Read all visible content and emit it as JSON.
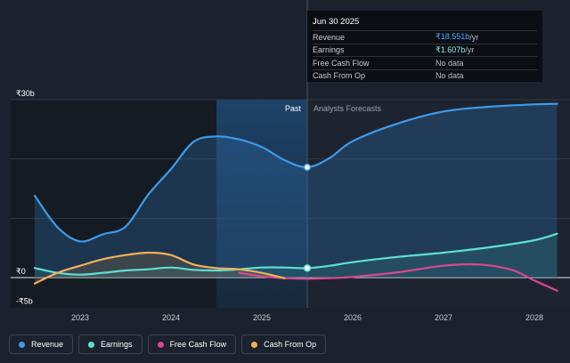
{
  "tooltip": {
    "date": "Jun 30 2025",
    "rows": [
      {
        "label": "Revenue",
        "value": "₹18.551b",
        "unit": " /yr"
      },
      {
        "label": "Earnings",
        "value": "₹1.607b",
        "unit": " /yr"
      },
      {
        "label": "Free Cash Flow",
        "value": "No data",
        "unit": ""
      },
      {
        "label": "Cash From Op",
        "value": "No data",
        "unit": ""
      }
    ]
  },
  "labels": {
    "past": "Past",
    "forecast": "Analysts Forecasts"
  },
  "legend": [
    {
      "label": "Revenue",
      "color": "#3d9be9"
    },
    {
      "label": "Earnings",
      "color": "#5ee0d2"
    },
    {
      "label": "Free Cash Flow",
      "color": "#d9488f"
    },
    {
      "label": "Cash From Op",
      "color": "#f3b05a"
    }
  ],
  "chart_data": {
    "type": "line",
    "y_unit": "₹b",
    "ylim": [
      -5,
      30
    ],
    "xlim": [
      2022.5,
      2028.25
    ],
    "y_tick_labels": [
      "₹30b",
      "₹0",
      "-₹5b"
    ],
    "y_tick_values": [
      30,
      0,
      -5
    ],
    "x_tick_labels": [
      "2023",
      "2024",
      "2025",
      "2026",
      "2027",
      "2028"
    ],
    "x_tick_values": [
      2023,
      2024,
      2025,
      2026,
      2027,
      2028
    ],
    "past_start": 2024.5,
    "divider": 2025.5,
    "series": [
      {
        "name": "Revenue",
        "color": "#3d9be9",
        "x": [
          2022.5,
          2022.75,
          2023.0,
          2023.25,
          2023.5,
          2023.75,
          2024.0,
          2024.25,
          2024.5,
          2024.75,
          2025.0,
          2025.25,
          2025.5,
          2025.75,
          2026.0,
          2026.5,
          2027.0,
          2027.5,
          2028.0,
          2028.25
        ],
        "y": [
          13.8,
          8.5,
          6.1,
          7.3,
          8.6,
          14.0,
          18.3,
          22.9,
          23.8,
          23.3,
          22.0,
          19.8,
          18.6,
          20.2,
          23.0,
          26.0,
          28.0,
          28.8,
          29.2,
          29.3
        ]
      },
      {
        "name": "Earnings",
        "color": "#5ee0d2",
        "x": [
          2022.5,
          2022.75,
          2023.0,
          2023.25,
          2023.5,
          2023.75,
          2024.0,
          2024.25,
          2024.5,
          2024.75,
          2025.0,
          2025.25,
          2025.5,
          2025.75,
          2026.0,
          2026.5,
          2027.0,
          2027.5,
          2028.0,
          2028.25
        ],
        "y": [
          1.6,
          0.8,
          0.5,
          0.8,
          1.2,
          1.4,
          1.7,
          1.3,
          1.2,
          1.4,
          1.7,
          1.7,
          1.6,
          2.0,
          2.6,
          3.5,
          4.2,
          5.1,
          6.3,
          7.4
        ]
      },
      {
        "name": "Free Cash Flow",
        "color": "#d9488f",
        "x": [
          2024.75,
          2025.0,
          2025.25,
          2025.5,
          2025.75,
          2026.0,
          2026.5,
          2027.0,
          2027.4,
          2027.75,
          2028.0,
          2028.25
        ],
        "y": [
          0.8,
          0.2,
          -0.1,
          -0.2,
          -0.1,
          0.1,
          0.9,
          2.0,
          2.2,
          1.3,
          -0.5,
          -2.2
        ]
      },
      {
        "name": "Cash From Op",
        "color": "#f3b05a",
        "x": [
          2022.5,
          2022.75,
          2023.0,
          2023.25,
          2023.5,
          2023.75,
          2024.0,
          2024.25,
          2024.5,
          2024.75,
          2025.0,
          2025.25
        ],
        "y": [
          -1.0,
          0.8,
          2.0,
          3.1,
          3.8,
          4.2,
          3.8,
          2.2,
          1.6,
          1.4,
          0.8,
          -0.1
        ]
      }
    ],
    "highlight": {
      "x": 2025.5,
      "revenue": 18.6,
      "earnings": 1.6
    }
  }
}
